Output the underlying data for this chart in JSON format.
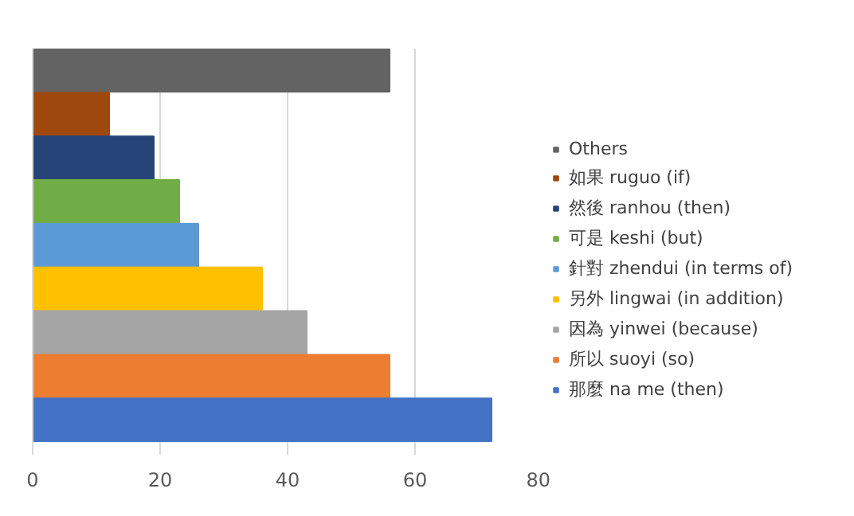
{
  "chart_data": {
    "type": "bar",
    "orientation": "horizontal",
    "categories": [
      null,
      null,
      null,
      null,
      null,
      null,
      null,
      null,
      null
    ],
    "series": [
      {
        "name": "Others",
        "color": "#636363",
        "values": [
          56,
          null,
          null,
          null,
          null,
          null,
          null,
          null,
          null
        ]
      },
      {
        "name": "如果 ruguo (if)",
        "color": "#9e480e",
        "values": [
          null,
          12,
          null,
          null,
          null,
          null,
          null,
          null,
          null
        ]
      },
      {
        "name": "然後 ranhou (then)",
        "color": "#264478",
        "values": [
          null,
          null,
          19,
          null,
          null,
          null,
          null,
          null,
          null
        ]
      },
      {
        "name": "可是 keshi (but)",
        "color": "#70ad47",
        "values": [
          null,
          null,
          null,
          23,
          null,
          null,
          null,
          null,
          null
        ]
      },
      {
        "name": "針對 zhendui (in terms of)",
        "color": "#5b9bd5",
        "values": [
          null,
          null,
          null,
          null,
          26,
          null,
          null,
          null,
          null
        ]
      },
      {
        "name": "另外 lingwai (in addition)",
        "color": "#ffc000",
        "values": [
          null,
          null,
          null,
          null,
          null,
          36,
          null,
          null,
          null
        ]
      },
      {
        "name": "因為 yinwei (because)",
        "color": "#a5a5a5",
        "values": [
          null,
          null,
          null,
          null,
          null,
          null,
          43,
          null,
          null
        ]
      },
      {
        "name": "所以 suoyi (so)",
        "color": "#ed7d31",
        "values": [
          null,
          null,
          null,
          null,
          null,
          null,
          null,
          56,
          null
        ]
      },
      {
        "name": "那麼 na me (then)",
        "color": "#4472c4",
        "values": [
          null,
          null,
          null,
          null,
          null,
          null,
          null,
          null,
          72
        ]
      }
    ],
    "xlim": [
      0,
      80
    ],
    "xticks": [
      0,
      20,
      40,
      60,
      80
    ],
    "grid": "x",
    "legend": "right"
  }
}
